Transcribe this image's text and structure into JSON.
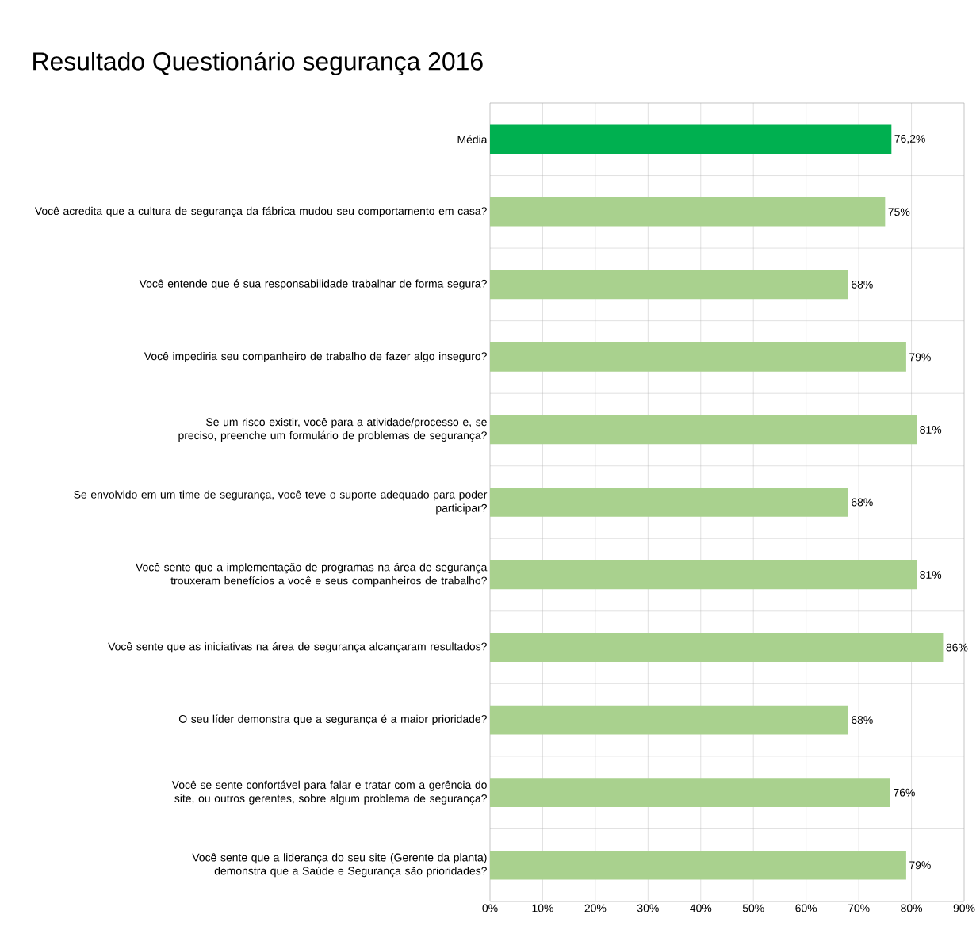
{
  "chart_data": {
    "type": "bar",
    "orientation": "horizontal",
    "title": "Resultado Questionário segurança 2016",
    "categories": [
      "Média",
      "Você acredita que a cultura de segurança da fábrica mudou seu comportamento em casa?",
      "Você entende que é sua responsabilidade trabalhar de forma segura?",
      "Você impediria seu companheiro de trabalho de fazer algo inseguro?",
      "Se um risco existir, você para a atividade/processo e, se preciso, preenche um formulário de problemas de segurança?",
      "Se envolvido em um time de segurança, você teve o suporte adequado para poder participar?",
      "Você sente que a implementação de programas na área de segurança trouxeram benefícios a você e seus companheiros de trabalho?",
      "Você sente que as iniciativas na área de segurança alcançaram resultados?",
      "O seu líder demonstra que a segurança é a maior prioridade?",
      "Você se sente confortável para falar e tratar com a gerência do site, ou outros gerentes, sobre algum problema de segurança?",
      "Você sente que a liderança do seu site (Gerente da planta) demonstra que a Saúde e Segurança são prioridades?"
    ],
    "values": [
      76.2,
      75,
      68,
      79,
      81,
      68,
      81,
      86,
      68,
      76,
      79
    ],
    "colors": [
      "#00b050",
      "#a9d18e",
      "#a9d18e",
      "#a9d18e",
      "#a9d18e",
      "#a9d18e",
      "#a9d18e",
      "#a9d18e",
      "#a9d18e",
      "#a9d18e",
      "#a9d18e"
    ],
    "value_labels": [
      "76,2%",
      "75%",
      "68%",
      "79%",
      "81%",
      "68%",
      "81%",
      "86%",
      "68%",
      "76%",
      "79%"
    ],
    "xlim": [
      0,
      90
    ],
    "xticks": [
      {
        "value": 0,
        "label": "0%"
      },
      {
        "value": 10,
        "label": "10%"
      },
      {
        "value": 20,
        "label": "20%"
      },
      {
        "value": 30,
        "label": "30%"
      },
      {
        "value": 40,
        "label": "40%"
      },
      {
        "value": 50,
        "label": "50%"
      },
      {
        "value": 60,
        "label": "60%"
      },
      {
        "value": 70,
        "label": "70%"
      },
      {
        "value": 80,
        "label": "80%"
      },
      {
        "value": 90,
        "label": "90%"
      }
    ],
    "grid": true
  }
}
